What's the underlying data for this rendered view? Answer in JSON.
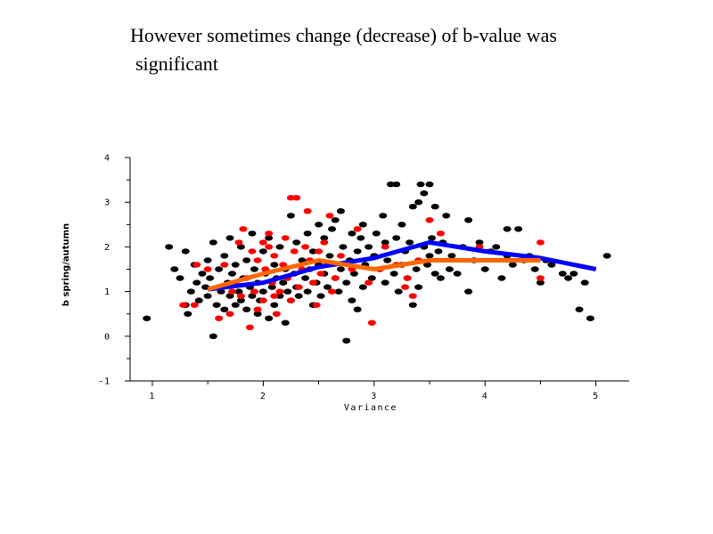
{
  "slide": {
    "title_line1": "However sometimes change (decrease) of b-value was",
    "title_line2": "significant"
  },
  "chart_data": {
    "type": "scatter",
    "xlabel": "Variance",
    "ylabel": "b spring/autumn",
    "xlim": [
      0.8,
      5.3
    ],
    "ylim": [
      -1,
      4
    ],
    "x_ticks": [
      1,
      2,
      3,
      4,
      5
    ],
    "y_ticks": [
      -1,
      0,
      1,
      2,
      3,
      4
    ],
    "grid": false,
    "colors": {
      "black": "#000000",
      "red": "#ff0000",
      "blue": "#0000ff",
      "orange": "#ff6600"
    },
    "series": [
      {
        "kind": "points",
        "color": "#000000",
        "points": [
          [
            0.95,
            0.4
          ],
          [
            1.15,
            2.0
          ],
          [
            1.2,
            1.5
          ],
          [
            1.25,
            1.3
          ],
          [
            1.3,
            0.7
          ],
          [
            1.3,
            1.9
          ],
          [
            1.32,
            0.5
          ],
          [
            1.35,
            1.0
          ],
          [
            1.38,
            1.6
          ],
          [
            1.4,
            1.2
          ],
          [
            1.42,
            0.8
          ],
          [
            1.45,
            1.4
          ],
          [
            1.48,
            1.1
          ],
          [
            1.5,
            0.9
          ],
          [
            1.5,
            1.7
          ],
          [
            1.52,
            1.3
          ],
          [
            1.55,
            0.0
          ],
          [
            1.55,
            2.1
          ],
          [
            1.58,
            0.7
          ],
          [
            1.6,
            1.5
          ],
          [
            1.62,
            1.0
          ],
          [
            1.65,
            0.6
          ],
          [
            1.65,
            1.8
          ],
          [
            1.68,
            1.2
          ],
          [
            1.7,
            0.9
          ],
          [
            1.7,
            2.2
          ],
          [
            1.72,
            1.4
          ],
          [
            1.75,
            0.7
          ],
          [
            1.75,
            1.6
          ],
          [
            1.78,
            1.0
          ],
          [
            1.8,
            0.8
          ],
          [
            1.8,
            2.0
          ],
          [
            1.82,
            1.3
          ],
          [
            1.85,
            0.6
          ],
          [
            1.85,
            1.7
          ],
          [
            1.88,
            1.1
          ],
          [
            1.9,
            0.9
          ],
          [
            1.9,
            2.3
          ],
          [
            1.92,
            1.5
          ],
          [
            1.95,
            0.5
          ],
          [
            1.95,
            1.2
          ],
          [
            1.97,
            0.8
          ],
          [
            2.0,
            1.0
          ],
          [
            2.0,
            1.9
          ],
          [
            2.02,
            1.4
          ],
          [
            2.05,
            0.4
          ],
          [
            2.05,
            2.2
          ],
          [
            2.08,
            1.1
          ],
          [
            2.1,
            0.7
          ],
          [
            2.1,
            1.6
          ],
          [
            2.12,
            1.3
          ],
          [
            2.15,
            0.9
          ],
          [
            2.15,
            2.0
          ],
          [
            2.18,
            1.2
          ],
          [
            2.2,
            0.3
          ],
          [
            2.2,
            1.5
          ],
          [
            2.22,
            1.0
          ],
          [
            2.25,
            2.7
          ],
          [
            2.25,
            0.8
          ],
          [
            2.28,
            1.4
          ],
          [
            2.3,
            1.1
          ],
          [
            2.3,
            2.1
          ],
          [
            2.32,
            0.9
          ],
          [
            2.35,
            1.7
          ],
          [
            2.38,
            1.3
          ],
          [
            2.4,
            1.0
          ],
          [
            2.4,
            2.3
          ],
          [
            2.42,
            1.5
          ],
          [
            2.45,
            0.7
          ],
          [
            2.45,
            1.9
          ],
          [
            2.48,
            1.2
          ],
          [
            2.5,
            1.6
          ],
          [
            2.5,
            2.5
          ],
          [
            2.52,
            0.9
          ],
          [
            2.55,
            1.4
          ],
          [
            2.55,
            2.2
          ],
          [
            2.58,
            1.1
          ],
          [
            2.6,
            1.8
          ],
          [
            2.62,
            2.4
          ],
          [
            2.65,
            1.3
          ],
          [
            2.65,
            2.6
          ],
          [
            2.68,
            1.0
          ],
          [
            2.7,
            2.8
          ],
          [
            2.7,
            1.5
          ],
          [
            2.72,
            2.0
          ],
          [
            2.75,
            -0.1
          ],
          [
            2.75,
            1.2
          ],
          [
            2.78,
            1.7
          ],
          [
            2.8,
            2.3
          ],
          [
            2.8,
            0.8
          ],
          [
            2.82,
            1.4
          ],
          [
            2.85,
            0.6
          ],
          [
            2.85,
            1.9
          ],
          [
            2.88,
            2.2
          ],
          [
            2.9,
            1.1
          ],
          [
            2.9,
            2.5
          ],
          [
            2.92,
            1.6
          ],
          [
            2.95,
            2.0
          ],
          [
            2.98,
            1.3
          ],
          [
            3.0,
            1.8
          ],
          [
            3.02,
            2.3
          ],
          [
            3.05,
            1.5
          ],
          [
            3.08,
            2.7
          ],
          [
            3.1,
            1.2
          ],
          [
            3.1,
            2.1
          ],
          [
            3.12,
            1.7
          ],
          [
            3.15,
            3.4
          ],
          [
            3.18,
            1.4
          ],
          [
            3.2,
            2.2
          ],
          [
            3.2,
            3.4
          ],
          [
            3.22,
            1.0
          ],
          [
            3.25,
            1.6
          ],
          [
            3.25,
            2.5
          ],
          [
            3.28,
            1.9
          ],
          [
            3.3,
            1.3
          ],
          [
            3.32,
            2.1
          ],
          [
            3.35,
            0.7
          ],
          [
            3.35,
            2.9
          ],
          [
            3.38,
            1.5
          ],
          [
            3.4,
            3.0
          ],
          [
            3.4,
            1.1
          ],
          [
            3.42,
            3.4
          ],
          [
            3.45,
            2.0
          ],
          [
            3.45,
            3.2
          ],
          [
            3.48,
            1.6
          ],
          [
            3.5,
            1.8
          ],
          [
            3.5,
            3.4
          ],
          [
            3.52,
            2.2
          ],
          [
            3.55,
            1.4
          ],
          [
            3.55,
            2.9
          ],
          [
            3.58,
            1.9
          ],
          [
            3.6,
            1.3
          ],
          [
            3.62,
            2.1
          ],
          [
            3.65,
            2.7
          ],
          [
            3.68,
            1.5
          ],
          [
            3.7,
            1.8
          ],
          [
            3.75,
            1.4
          ],
          [
            3.8,
            2.0
          ],
          [
            3.85,
            2.6
          ],
          [
            3.85,
            1.0
          ],
          [
            3.9,
            1.7
          ],
          [
            3.95,
            2.1
          ],
          [
            4.0,
            1.5
          ],
          [
            4.05,
            1.9
          ],
          [
            4.1,
            2.0
          ],
          [
            4.15,
            1.3
          ],
          [
            4.2,
            1.8
          ],
          [
            4.2,
            2.4
          ],
          [
            4.25,
            1.6
          ],
          [
            4.3,
            2.4
          ],
          [
            4.35,
            1.7
          ],
          [
            4.4,
            1.8
          ],
          [
            4.45,
            1.5
          ],
          [
            4.5,
            1.2
          ],
          [
            4.55,
            1.7
          ],
          [
            4.6,
            1.6
          ],
          [
            4.7,
            1.4
          ],
          [
            4.75,
            1.3
          ],
          [
            4.8,
            1.4
          ],
          [
            4.85,
            0.6
          ],
          [
            4.9,
            1.2
          ],
          [
            4.95,
            0.4
          ],
          [
            5.1,
            1.8
          ]
        ]
      },
      {
        "kind": "points",
        "color": "#ff0000",
        "points": [
          [
            1.28,
            0.7
          ],
          [
            1.38,
            0.7
          ],
          [
            1.4,
            1.6
          ],
          [
            1.5,
            1.5
          ],
          [
            1.6,
            0.4
          ],
          [
            1.65,
            1.6
          ],
          [
            1.7,
            0.5
          ],
          [
            1.72,
            1.0
          ],
          [
            1.75,
            1.2
          ],
          [
            1.78,
            2.1
          ],
          [
            1.8,
            0.9
          ],
          [
            1.82,
            2.4
          ],
          [
            1.85,
            1.3
          ],
          [
            1.88,
            0.2
          ],
          [
            1.9,
            1.9
          ],
          [
            1.92,
            1.0
          ],
          [
            1.95,
            0.6
          ],
          [
            1.95,
            1.7
          ],
          [
            2.0,
            0.8
          ],
          [
            2.0,
            2.1
          ],
          [
            2.02,
            1.5
          ],
          [
            2.05,
            2.0
          ],
          [
            2.05,
            2.3
          ],
          [
            2.08,
            1.2
          ],
          [
            2.1,
            0.9
          ],
          [
            2.1,
            1.8
          ],
          [
            2.12,
            0.5
          ],
          [
            2.15,
            1.0
          ],
          [
            2.18,
            1.6
          ],
          [
            2.2,
            2.2
          ],
          [
            2.22,
            1.3
          ],
          [
            2.25,
            0.8
          ],
          [
            2.25,
            3.1
          ],
          [
            2.28,
            1.9
          ],
          [
            2.3,
            3.1
          ],
          [
            2.32,
            1.1
          ],
          [
            2.35,
            1.5
          ],
          [
            2.38,
            2.0
          ],
          [
            2.4,
            2.8
          ],
          [
            2.42,
            1.7
          ],
          [
            2.45,
            1.2
          ],
          [
            2.48,
            0.7
          ],
          [
            2.5,
            1.9
          ],
          [
            2.52,
            1.4
          ],
          [
            2.55,
            2.1
          ],
          [
            2.58,
            1.6
          ],
          [
            2.6,
            2.7
          ],
          [
            2.62,
            1.0
          ],
          [
            2.65,
            1.3
          ],
          [
            2.7,
            1.8
          ],
          [
            2.8,
            1.5
          ],
          [
            2.85,
            2.4
          ],
          [
            2.95,
            1.2
          ],
          [
            2.98,
            0.3
          ],
          [
            3.05,
            1.5
          ],
          [
            3.1,
            2.0
          ],
          [
            3.2,
            1.6
          ],
          [
            3.28,
            1.1
          ],
          [
            3.3,
            1.3
          ],
          [
            3.35,
            0.9
          ],
          [
            3.4,
            1.7
          ],
          [
            3.5,
            2.6
          ],
          [
            3.6,
            2.3
          ],
          [
            3.95,
            2.0
          ],
          [
            4.5,
            1.3
          ],
          [
            4.5,
            2.1
          ]
        ]
      },
      {
        "kind": "line",
        "color": "#0000ff",
        "points": [
          [
            1.5,
            1.05
          ],
          [
            2.0,
            1.2
          ],
          [
            2.5,
            1.55
          ],
          [
            3.0,
            1.75
          ],
          [
            3.5,
            2.1
          ],
          [
            4.0,
            1.9
          ],
          [
            4.5,
            1.75
          ],
          [
            5.0,
            1.5
          ]
        ]
      },
      {
        "kind": "line",
        "color": "#ff6600",
        "points": [
          [
            1.5,
            1.05
          ],
          [
            2.0,
            1.4
          ],
          [
            2.5,
            1.7
          ],
          [
            3.0,
            1.5
          ],
          [
            3.5,
            1.7
          ],
          [
            4.0,
            1.7
          ],
          [
            4.5,
            1.7
          ]
        ]
      }
    ]
  }
}
